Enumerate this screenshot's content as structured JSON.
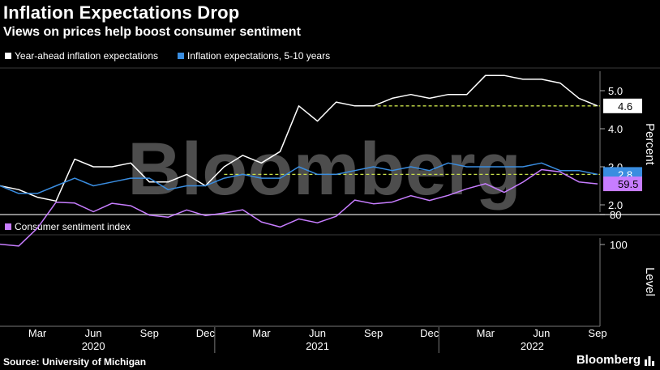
{
  "title": "Inflation Expectations Drop",
  "subtitle": "Views on prices help boost consumer sentiment",
  "source": "Source: University of Michigan",
  "brand": "Bloomberg",
  "watermark": "Bloomberg",
  "colors": {
    "white_series": "#ffffff",
    "blue_series": "#3a8de0",
    "purple_series": "#c77dff",
    "ref_line": "#c8e04a"
  },
  "chart_data": [
    {
      "type": "line",
      "x": [
        "2020-01",
        "2020-02",
        "2020-03",
        "2020-04",
        "2020-05",
        "2020-06",
        "2020-07",
        "2020-08",
        "2020-09",
        "2020-10",
        "2020-11",
        "2020-12",
        "2021-01",
        "2021-02",
        "2021-03",
        "2021-04",
        "2021-05",
        "2021-06",
        "2021-07",
        "2021-08",
        "2021-09",
        "2021-10",
        "2021-11",
        "2021-12",
        "2022-01",
        "2022-02",
        "2022-03",
        "2022-04",
        "2022-05",
        "2022-06",
        "2022-07",
        "2022-08",
        "2022-09"
      ],
      "series": [
        {
          "name": "Year-ahead inflation expectations",
          "values": [
            2.5,
            2.4,
            2.2,
            2.1,
            3.2,
            3.0,
            3.0,
            3.1,
            2.6,
            2.6,
            2.8,
            2.5,
            3.0,
            3.3,
            3.1,
            3.4,
            4.6,
            4.2,
            4.7,
            4.6,
            4.6,
            4.8,
            4.9,
            4.8,
            4.9,
            4.9,
            5.4,
            5.4,
            5.3,
            5.3,
            5.2,
            4.8,
            4.6
          ],
          "last_label": "4.6"
        },
        {
          "name": "Inflation expectations, 5-10 years",
          "values": [
            2.5,
            2.3,
            2.3,
            2.5,
            2.7,
            2.5,
            2.6,
            2.7,
            2.7,
            2.4,
            2.5,
            2.5,
            2.7,
            2.8,
            2.7,
            2.7,
            3.0,
            2.8,
            2.8,
            2.9,
            3.0,
            2.9,
            3.0,
            2.9,
            3.1,
            3.0,
            3.0,
            3.0,
            3.0,
            3.1,
            2.9,
            2.9,
            2.8
          ],
          "last_label": "2.8"
        }
      ],
      "reference_lines": [
        4.6,
        2.8
      ],
      "ylabel": "Percent",
      "yticks": [
        "2.0",
        "3.0",
        "4.0",
        "5.0"
      ],
      "ylim": [
        1.8,
        5.8
      ]
    },
    {
      "type": "line",
      "x": [
        "2020-01",
        "2020-02",
        "2020-03",
        "2020-04",
        "2020-05",
        "2020-06",
        "2020-07",
        "2020-08",
        "2020-09",
        "2020-10",
        "2020-11",
        "2020-12",
        "2021-01",
        "2021-02",
        "2021-03",
        "2021-04",
        "2021-05",
        "2021-06",
        "2021-07",
        "2021-08",
        "2021-09",
        "2021-10",
        "2021-11",
        "2021-12",
        "2022-01",
        "2022-02",
        "2022-03",
        "2022-04",
        "2022-05",
        "2022-06",
        "2022-07",
        "2022-08",
        "2022-09"
      ],
      "series": [
        {
          "name": "Consumer sentiment index",
          "values": [
            99.8,
            101,
            89.1,
            71.8,
            72.3,
            78.1,
            72.5,
            74.1,
            80.4,
            81.8,
            76.9,
            80.7,
            79.0,
            76.8,
            84.9,
            88.3,
            82.9,
            85.5,
            81.2,
            70.3,
            72.8,
            71.7,
            67.4,
            70.6,
            67.2,
            62.8,
            59.4,
            65.2,
            58.4,
            50.0,
            51.5,
            58.2,
            59.5
          ],
          "last_label": "59.5"
        }
      ],
      "ylabel": "Level",
      "yticks": [
        "80",
        "100"
      ],
      "ylim": [
        45,
        105
      ]
    }
  ],
  "month_labels": [
    "Mar",
    "Jun",
    "Sep",
    "Dec",
    "Mar",
    "Jun",
    "Sep",
    "Dec",
    "Mar",
    "Jun",
    "Sep"
  ],
  "year_labels": [
    "2020",
    "2021",
    "2022"
  ]
}
